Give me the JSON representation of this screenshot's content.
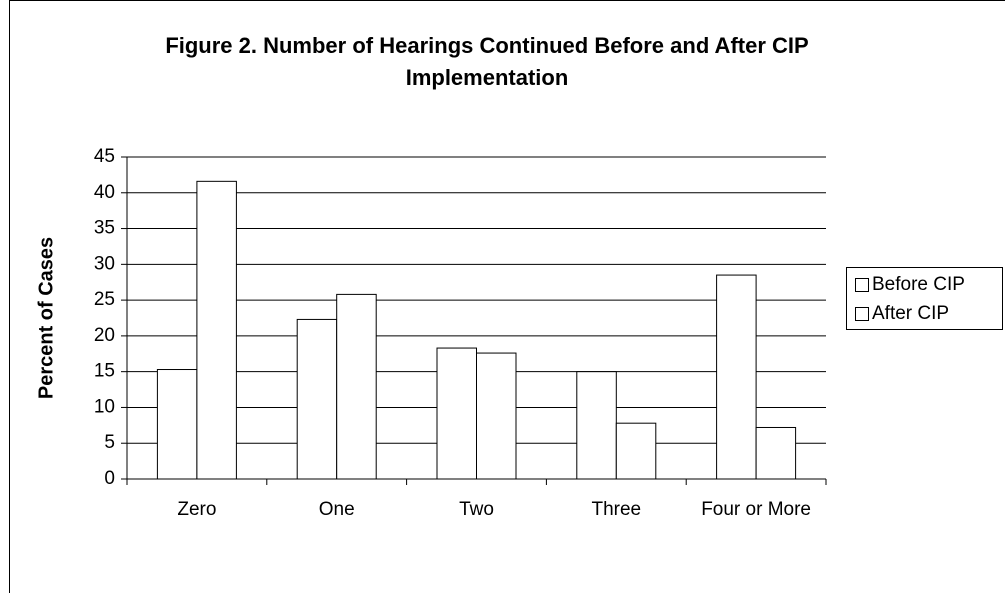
{
  "chart_data": {
    "type": "bar",
    "title": "Figure 2. Number of Hearings Continued Before and After CIP Implementation",
    "y_label": "Percent of Cases",
    "categories": [
      "Zero",
      "One",
      "Two",
      "Three",
      "Four or More"
    ],
    "series": [
      {
        "name": "Before CIP",
        "color": "#ffffff",
        "values": [
          15.3,
          22.3,
          18.3,
          15.0,
          28.5
        ]
      },
      {
        "name": "After CIP",
        "color": "#ffffff",
        "values": [
          41.6,
          25.8,
          17.6,
          7.8,
          7.2
        ]
      }
    ],
    "ylim": [
      0,
      45
    ],
    "yticks": [
      0,
      5,
      10,
      15,
      20,
      25,
      30,
      35,
      40,
      45
    ],
    "grid": true,
    "legend": "right"
  }
}
